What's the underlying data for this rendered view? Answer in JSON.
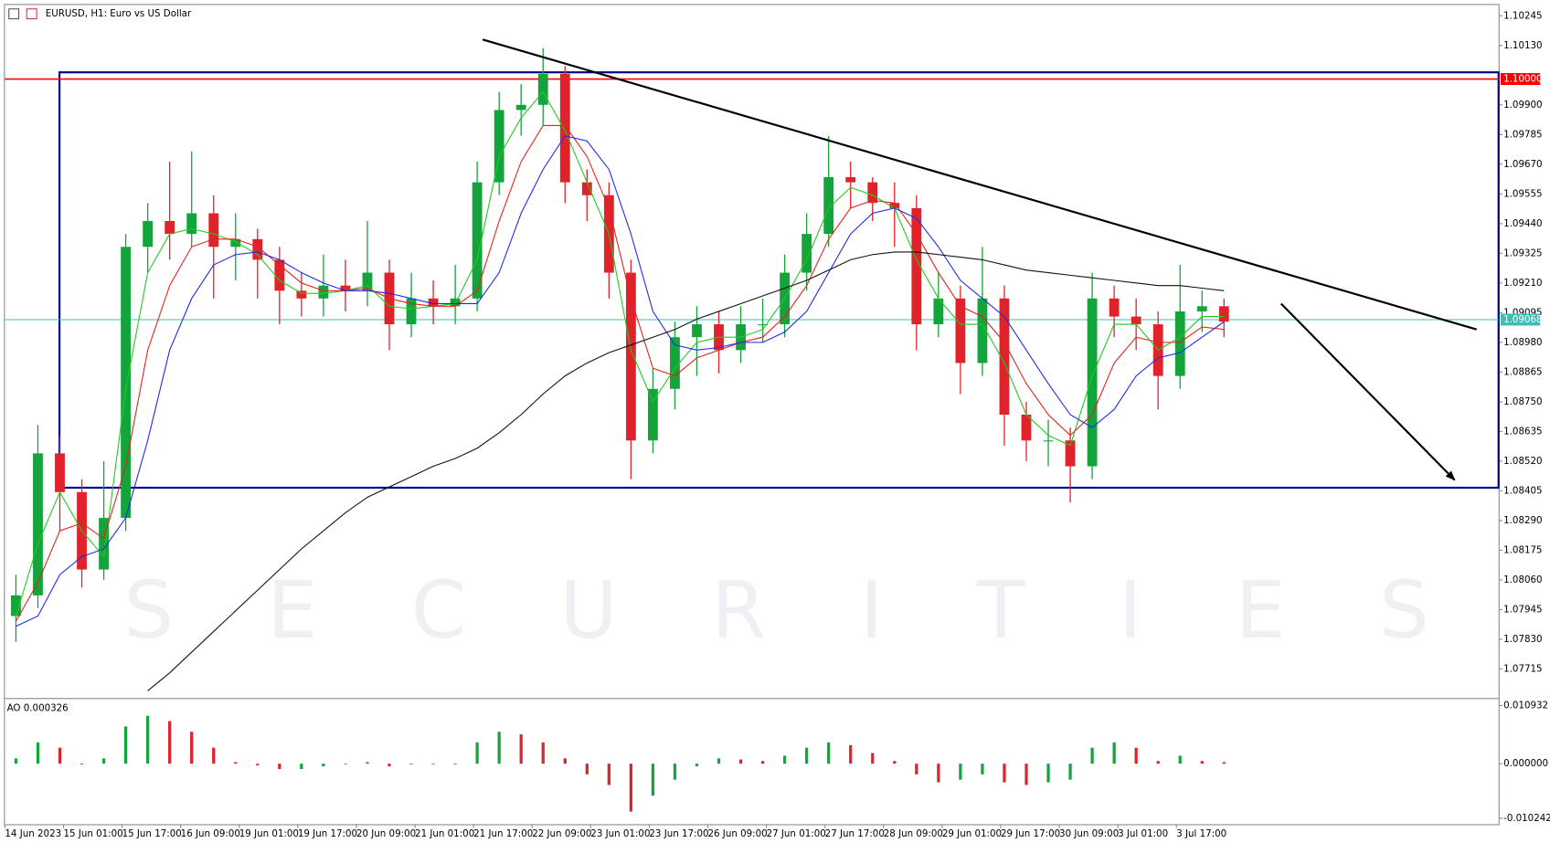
{
  "watermark": "SECURITIES",
  "chart_data": [
    {
      "type": "candlestick",
      "title": "EURUSD, H1:  Euro vs US Dollar",
      "xlim": [
        0,
        408
      ],
      "xticks": [
        {
          "value": 0,
          "label": "14 Jun 2023"
        },
        {
          "value": 16,
          "label": "15 Jun 01:00"
        },
        {
          "value": 32,
          "label": "15 Jun 17:00"
        },
        {
          "value": 48,
          "label": "16 Jun 09:00"
        },
        {
          "value": 64,
          "label": "19 Jun 01:00"
        },
        {
          "value": 80,
          "label": "19 Jun 17:00"
        },
        {
          "value": 96,
          "label": "20 Jun 09:00"
        },
        {
          "value": 112,
          "label": "21 Jun 01:00"
        },
        {
          "value": 128,
          "label": "21 Jun 17:00"
        },
        {
          "value": 144,
          "label": "22 Jun 09:00"
        },
        {
          "value": 160,
          "label": "23 Jun 01:00"
        },
        {
          "value": 176,
          "label": "23 Jun 17:00"
        },
        {
          "value": 192,
          "label": "26 Jun 09:00"
        },
        {
          "value": 208,
          "label": "27 Jun 01:00"
        },
        {
          "value": 224,
          "label": "27 Jun 17:00"
        },
        {
          "value": 240,
          "label": "28 Jun 09:00"
        },
        {
          "value": 256,
          "label": "29 Jun 01:00"
        },
        {
          "value": 272,
          "label": "29 Jun 17:00"
        },
        {
          "value": 288,
          "label": "30 Jun 09:00"
        },
        {
          "value": 304,
          "label": "3 Jul 01:00"
        },
        {
          "value": 320,
          "label": "3 Jul 17:00"
        }
      ],
      "ylim": [
        1.07608,
        1.10287
      ],
      "yticks": [
        1.10245,
        {
          "value": 1.1013,
          "label": "1.10130"
        },
        {
          "value": 1.099,
          "label": "1.09900"
        },
        1.09785,
        {
          "value": 1.0967,
          "label": "1.09670"
        },
        1.09555,
        {
          "value": 1.0944,
          "label": "1.09440"
        },
        1.09325,
        {
          "value": 1.0921,
          "label": "1.09210"
        },
        1.09095,
        {
          "value": 1.0898,
          "label": "1.08980"
        },
        1.08865,
        {
          "value": 1.0875,
          "label": "1.08750"
        },
        1.08635,
        {
          "value": 1.0852,
          "label": "1.08520"
        },
        1.08405,
        {
          "value": 1.0829,
          "label": "1.08290"
        },
        1.08175,
        {
          "value": 1.0806,
          "label": "1.08060"
        },
        1.07945,
        {
          "value": 1.0783,
          "label": "1.07830"
        },
        1.07715
      ],
      "up_color": "#13a53b",
      "down_color": "#e0232a",
      "x": [
        3,
        9,
        15,
        21,
        27,
        33,
        39,
        45,
        51,
        57,
        63,
        69,
        75,
        81,
        87,
        93,
        99,
        105,
        111,
        117,
        123,
        129,
        135,
        141,
        147,
        153,
        159,
        165,
        171,
        177,
        183,
        189,
        195,
        201,
        207,
        213,
        219,
        225,
        231,
        237,
        243,
        249,
        255,
        261,
        267,
        273,
        279,
        285,
        291,
        297,
        303,
        309,
        315,
        321,
        327,
        333
      ],
      "open": [
        1.0792,
        1.08,
        1.0855,
        1.084,
        1.081,
        1.083,
        1.0935,
        1.0945,
        1.094,
        1.0948,
        1.0935,
        1.0938,
        1.093,
        1.0918,
        1.0915,
        1.092,
        1.0918,
        1.0925,
        1.0905,
        1.0915,
        1.0912,
        1.0915,
        1.096,
        1.0988,
        1.099,
        1.1002,
        1.096,
        1.0955,
        1.0925,
        1.086,
        1.088,
        1.09,
        1.0905,
        1.0895,
        1.0905,
        1.0905,
        1.0925,
        1.094,
        1.0962,
        1.096,
        1.0952,
        1.095,
        1.0905,
        1.0915,
        1.089,
        1.0915,
        1.087,
        1.086,
        1.086,
        1.085,
        1.0915,
        1.0908,
        1.0905,
        1.0885,
        1.091,
        1.0912
      ],
      "high": [
        1.0808,
        1.0866,
        1.0862,
        1.0845,
        1.0852,
        1.094,
        1.0952,
        1.0968,
        1.0972,
        1.0955,
        1.0948,
        1.0942,
        1.0935,
        1.0925,
        1.0932,
        1.093,
        1.0945,
        1.093,
        1.0925,
        1.0922,
        1.0928,
        1.0968,
        1.0995,
        1.0998,
        1.1012,
        1.1005,
        1.0965,
        1.096,
        1.093,
        1.0888,
        1.0906,
        1.0912,
        1.091,
        1.0912,
        1.0915,
        1.0932,
        1.0948,
        1.0978,
        1.0968,
        1.0962,
        1.096,
        1.0955,
        1.0925,
        1.092,
        1.0935,
        1.092,
        1.0875,
        1.0868,
        1.0865,
        1.0925,
        1.092,
        1.0915,
        1.091,
        1.0928,
        1.0918,
        1.0915
      ],
      "low": [
        1.0782,
        1.0795,
        1.0825,
        1.0803,
        1.0806,
        1.0825,
        1.0925,
        1.093,
        1.0935,
        1.0915,
        1.0922,
        1.0915,
        1.0905,
        1.0908,
        1.0908,
        1.091,
        1.0912,
        1.0895,
        1.09,
        1.0905,
        1.0905,
        1.091,
        1.0955,
        1.0978,
        1.0982,
        1.0952,
        1.0945,
        1.0915,
        1.0845,
        1.0855,
        1.0872,
        1.0885,
        1.0886,
        1.089,
        1.0898,
        1.09,
        1.0918,
        1.0935,
        1.095,
        1.0945,
        1.0935,
        1.0895,
        1.09,
        1.0878,
        1.0885,
        1.0858,
        1.0852,
        1.085,
        1.0836,
        1.0845,
        1.09,
        1.0895,
        1.0872,
        1.088,
        1.0902,
        1.09
      ],
      "close": [
        1.08,
        1.0855,
        1.084,
        1.081,
        1.083,
        1.0935,
        1.0945,
        1.094,
        1.0948,
        1.0935,
        1.0938,
        1.093,
        1.0918,
        1.0915,
        1.092,
        1.0918,
        1.0925,
        1.0905,
        1.0915,
        1.0912,
        1.0915,
        1.096,
        1.0988,
        1.099,
        1.1002,
        1.096,
        1.0955,
        1.0925,
        1.086,
        1.088,
        1.09,
        1.0905,
        1.0895,
        1.0905,
        1.0905,
        1.0925,
        1.094,
        1.0962,
        1.096,
        1.0952,
        1.095,
        1.0905,
        1.0915,
        1.089,
        1.0915,
        1.087,
        1.086,
        1.086,
        1.085,
        1.0915,
        1.0908,
        1.0905,
        1.0885,
        1.091,
        1.0912,
        1.0906
      ],
      "series": [
        {
          "color": "#1ecb1e",
          "values": [
            1.0792,
            1.082,
            1.084,
            1.0825,
            1.0815,
            1.088,
            1.0925,
            1.094,
            1.0942,
            1.094,
            1.0937,
            1.0932,
            1.0922,
            1.0917,
            1.0917,
            1.0918,
            1.092,
            1.0912,
            1.0911,
            1.0912,
            1.0913,
            1.093,
            1.097,
            1.0985,
            1.0995,
            1.098,
            1.096,
            1.094,
            1.0895,
            1.0875,
            1.0888,
            1.0898,
            1.09,
            1.09,
            1.0903,
            1.0915,
            1.093,
            1.095,
            1.0958,
            1.0955,
            1.095,
            1.093,
            1.0915,
            1.0905,
            1.0905,
            1.089,
            1.087,
            1.0862,
            1.0858,
            1.0885,
            1.0905,
            1.0905,
            1.0895,
            1.09,
            1.0908,
            1.0908
          ]
        },
        {
          "color": "#e8201a",
          "values": [
            1.079,
            1.0805,
            1.0825,
            1.0828,
            1.0822,
            1.085,
            1.0895,
            1.092,
            1.0935,
            1.0938,
            1.0938,
            1.0935,
            1.0928,
            1.0921,
            1.0918,
            1.0918,
            1.0919,
            1.0915,
            1.0913,
            1.0912,
            1.0912,
            1.0918,
            1.0945,
            1.0968,
            1.0982,
            1.0982,
            1.097,
            1.095,
            1.0915,
            1.0888,
            1.0885,
            1.0892,
            1.0895,
            1.0898,
            1.09,
            1.0908,
            1.092,
            1.0938,
            1.095,
            1.0953,
            1.0952,
            1.094,
            1.0925,
            1.0912,
            1.0908,
            1.0898,
            1.0882,
            1.087,
            1.0862,
            1.087,
            1.089,
            1.09,
            1.0898,
            1.0898,
            1.0904,
            1.0903
          ]
        },
        {
          "color": "#1d2be0",
          "values": [
            1.0788,
            1.0792,
            1.0808,
            1.0815,
            1.0818,
            1.083,
            1.086,
            1.0895,
            1.0915,
            1.0928,
            1.0932,
            1.0933,
            1.093,
            1.0925,
            1.0921,
            1.0918,
            1.0918,
            1.0917,
            1.0915,
            1.0913,
            1.0913,
            1.0913,
            1.0925,
            1.0948,
            1.0965,
            1.0978,
            1.0976,
            1.0965,
            1.094,
            1.091,
            1.0897,
            1.0895,
            1.0896,
            1.0898,
            1.0898,
            1.0902,
            1.091,
            1.0925,
            1.094,
            1.0948,
            1.095,
            1.0946,
            1.0935,
            1.0922,
            1.0915,
            1.0908,
            1.0895,
            1.0882,
            1.087,
            1.0865,
            1.0872,
            1.0885,
            1.0892,
            1.0894,
            1.09,
            1.0906
          ]
        },
        {
          "color": "#111111",
          "values": [
            null,
            null,
            null,
            null,
            null,
            null,
            1.0763,
            1.077,
            1.0778,
            1.0786,
            1.0794,
            1.0802,
            1.081,
            1.0818,
            1.0825,
            1.0832,
            1.0838,
            1.0842,
            1.0846,
            1.085,
            1.0853,
            1.0857,
            1.0863,
            1.087,
            1.0878,
            1.0885,
            1.089,
            1.0894,
            1.0897,
            1.09,
            1.0903,
            1.0907,
            1.091,
            1.0913,
            1.0916,
            1.0919,
            1.0922,
            1.0926,
            1.093,
            1.0932,
            1.0933,
            1.0933,
            1.0932,
            1.0931,
            1.093,
            1.0928,
            1.0926,
            1.0925,
            1.0924,
            1.0923,
            1.0922,
            1.0921,
            1.092,
            1.092,
            1.0919,
            1.0918
          ]
        }
      ],
      "hlines": [
        {
          "value": 1.1,
          "label": "1.10000",
          "color": "#ff0000"
        },
        {
          "value": 1.09068,
          "label": "1.09068",
          "color": "#3fbfb4"
        }
      ],
      "box": {
        "x": [
          14.9,
          408
        ],
        "y": [
          1.10026,
          1.08417
        ],
        "color": "#00008b"
      },
      "lines": [
        {
          "from": [
            130.5,
            1.10153
          ],
          "to": [
            402,
            1.0903
          ],
          "color": "#000000"
        },
        {
          "from": [
            348.6,
            1.0913
          ],
          "to": [
            396,
            1.08447
          ],
          "color": "#000000",
          "arrow": true
        }
      ]
    },
    {
      "type": "bar",
      "title": "AO 0.000326",
      "up_color": "#13a53b",
      "down_color": "#e0232a",
      "xlim": [
        0,
        408
      ],
      "ylim": [
        -0.01118,
        0.01187
      ],
      "yticks": [
        0.010932,
        {
          "value": 0,
          "label": "0.000000"
        },
        -0.010242
      ],
      "x": [
        3,
        9,
        15,
        21,
        27,
        33,
        39,
        45,
        51,
        57,
        63,
        69,
        75,
        81,
        87,
        93,
        99,
        105,
        111,
        117,
        123,
        129,
        135,
        141,
        147,
        153,
        159,
        165,
        171,
        177,
        183,
        189,
        195,
        201,
        207,
        213,
        219,
        225,
        231,
        237,
        243,
        249,
        255,
        261,
        267,
        273,
        279,
        285,
        291,
        297,
        303,
        309,
        315,
        321,
        327,
        333
      ],
      "values": [
        0.001,
        0.004,
        0.003,
        0,
        0.001,
        0.007,
        0.009,
        0.008,
        0.006,
        0.003,
        0.0003,
        -0.0003,
        -0.001,
        -0.001,
        -0.0005,
        0,
        0.0003,
        -0.0005,
        0,
        0,
        0,
        0.004,
        0.006,
        0.0055,
        0.004,
        0.001,
        -0.002,
        -0.004,
        -0.009,
        -0.006,
        -0.003,
        -0.0005,
        0.001,
        0.0008,
        0.0005,
        0.0015,
        0.003,
        0.004,
        0.0035,
        0.002,
        0.0005,
        -0.002,
        -0.0035,
        -0.003,
        -0.002,
        -0.0035,
        -0.004,
        -0.0035,
        -0.003,
        0.003,
        0.004,
        0.003,
        0.0005,
        0.0015,
        0.0005,
        0.0003
      ]
    }
  ]
}
